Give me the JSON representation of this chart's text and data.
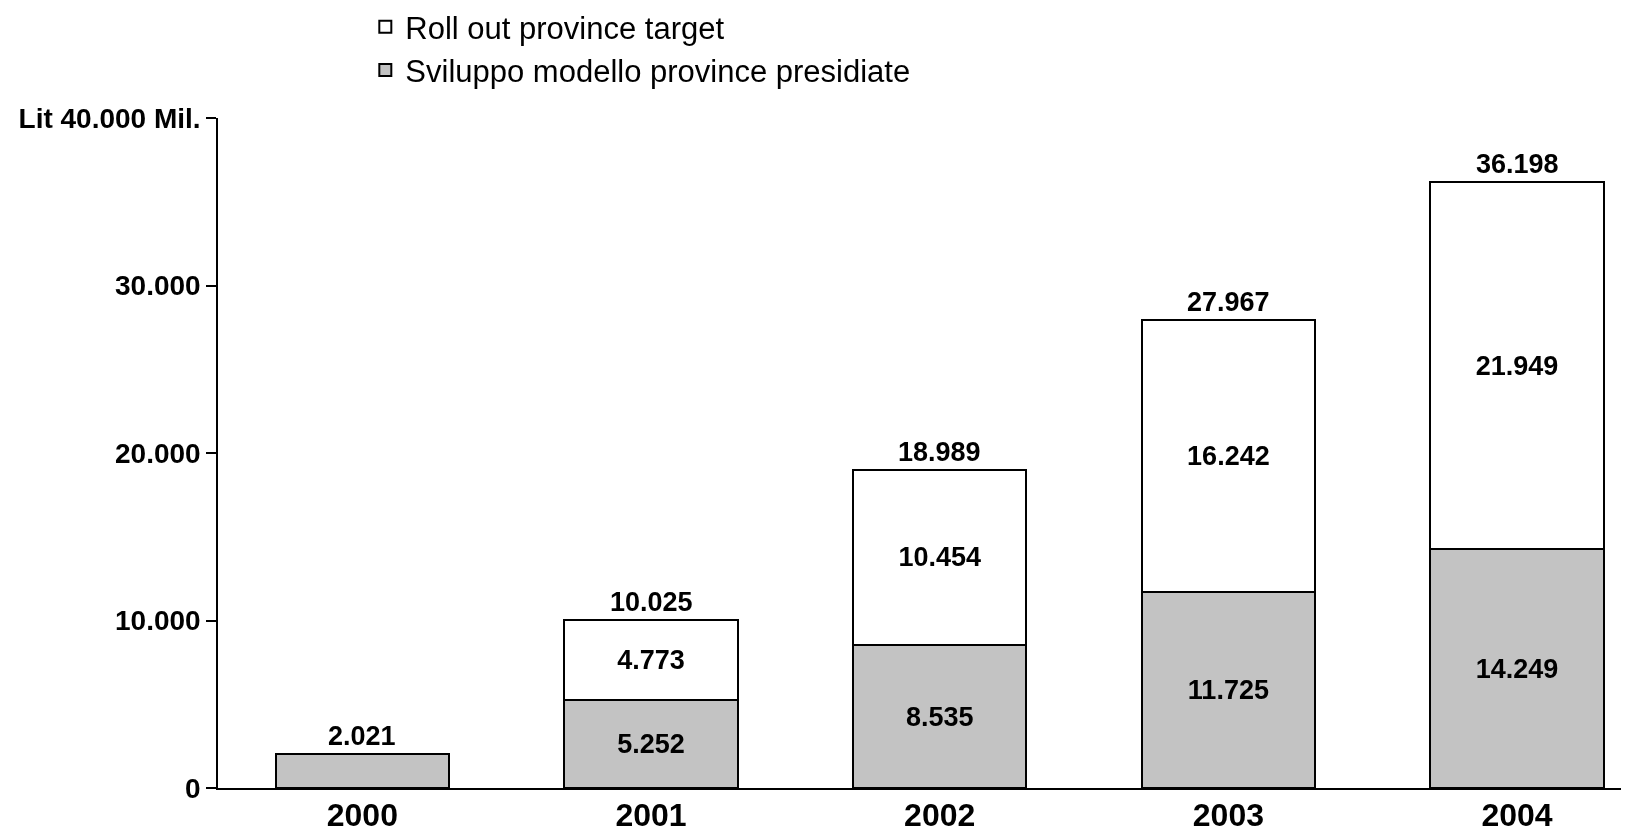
{
  "chart_data": {
    "type": "bar",
    "stacked": true,
    "categories": [
      "2000",
      "2001",
      "2002",
      "2003",
      "2004"
    ],
    "series": [
      {
        "name": "Sviluppo modello province presidiate",
        "color": "#c3c3c3",
        "values": [
          2021,
          5252,
          8535,
          11725,
          14249
        ],
        "value_labels": [
          null,
          "5.252",
          "8.535",
          "11.725",
          "14.249"
        ]
      },
      {
        "name": "Roll out province target",
        "color": "#ffffff",
        "values": [
          null,
          4773,
          10454,
          16242,
          21949
        ],
        "value_labels": [
          null,
          "4.773",
          "10.454",
          "16.242",
          "21.949"
        ]
      }
    ],
    "totals": [
      "2.021",
      "10.025",
      "18.989",
      "27.967",
      "36.198"
    ],
    "ylim": [
      0,
      40000
    ],
    "yticks": [
      0,
      {
        "value": 10000,
        "label": "10.000"
      },
      {
        "value": 20000,
        "label": "20.000"
      },
      {
        "value": 30000,
        "label": "30.000"
      },
      {
        "value": 40000,
        "label": "Lit 40.000 Mil."
      }
    ],
    "legend": "top left"
  }
}
